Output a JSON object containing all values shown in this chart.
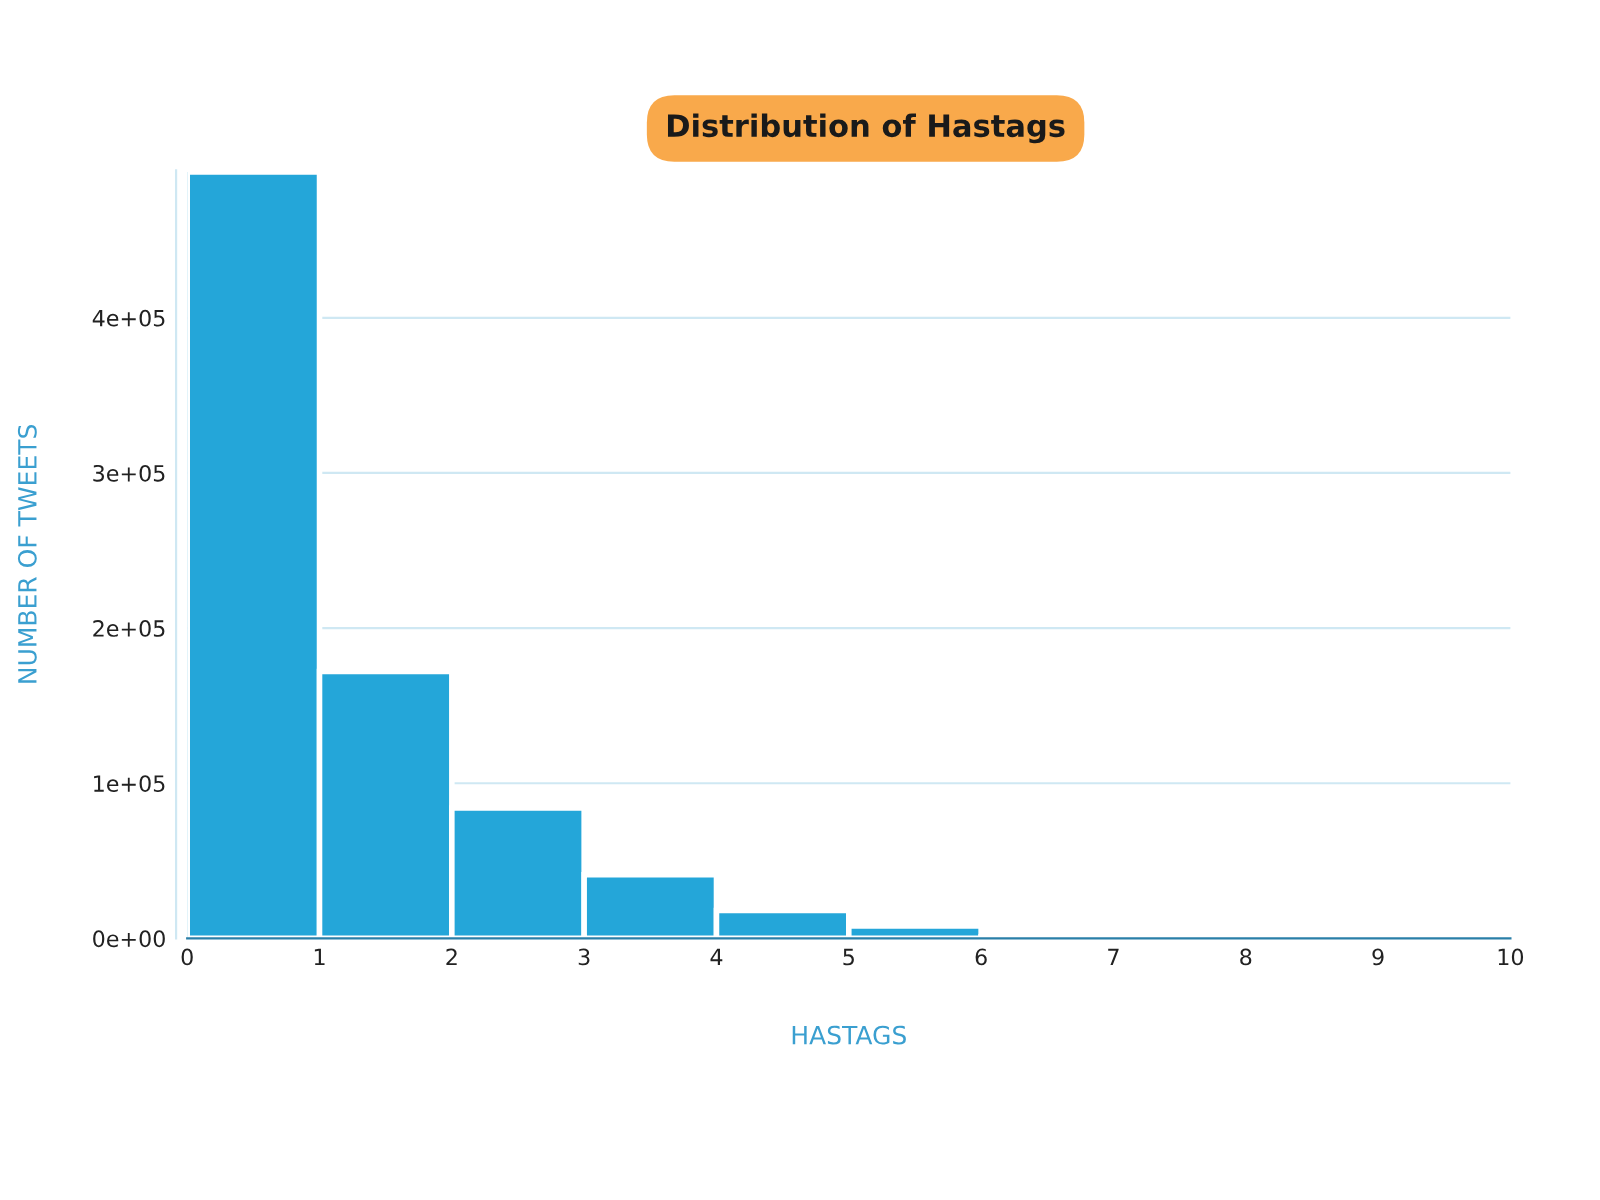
{
  "chart_data": {
    "type": "histogram",
    "title": "Distribution of Hastags",
    "xlabel": "HASTAGS",
    "ylabel": "NUMBER OF TWEETS",
    "bins": [
      0,
      1,
      2,
      3,
      4,
      5,
      6,
      7,
      8,
      9,
      10
    ],
    "values": [
      494000,
      172000,
      84000,
      41000,
      18000,
      8000,
      1000,
      0,
      0,
      0
    ],
    "color": "#24a6d9",
    "xlim": [
      0,
      10
    ],
    "xticks": [
      0,
      1,
      2,
      3,
      4,
      5,
      6,
      7,
      8,
      9,
      10
    ],
    "ylim": [
      0,
      495000
    ],
    "yticks": [
      {
        "value": 0,
        "label": "0e+00"
      },
      {
        "value": 100000,
        "label": "1e+05"
      },
      {
        "value": 200000,
        "label": "2e+05"
      },
      {
        "value": 300000,
        "label": "3e+05"
      },
      {
        "value": 400000,
        "label": "4e+05"
      }
    ],
    "grid": "y",
    "legend": false
  }
}
